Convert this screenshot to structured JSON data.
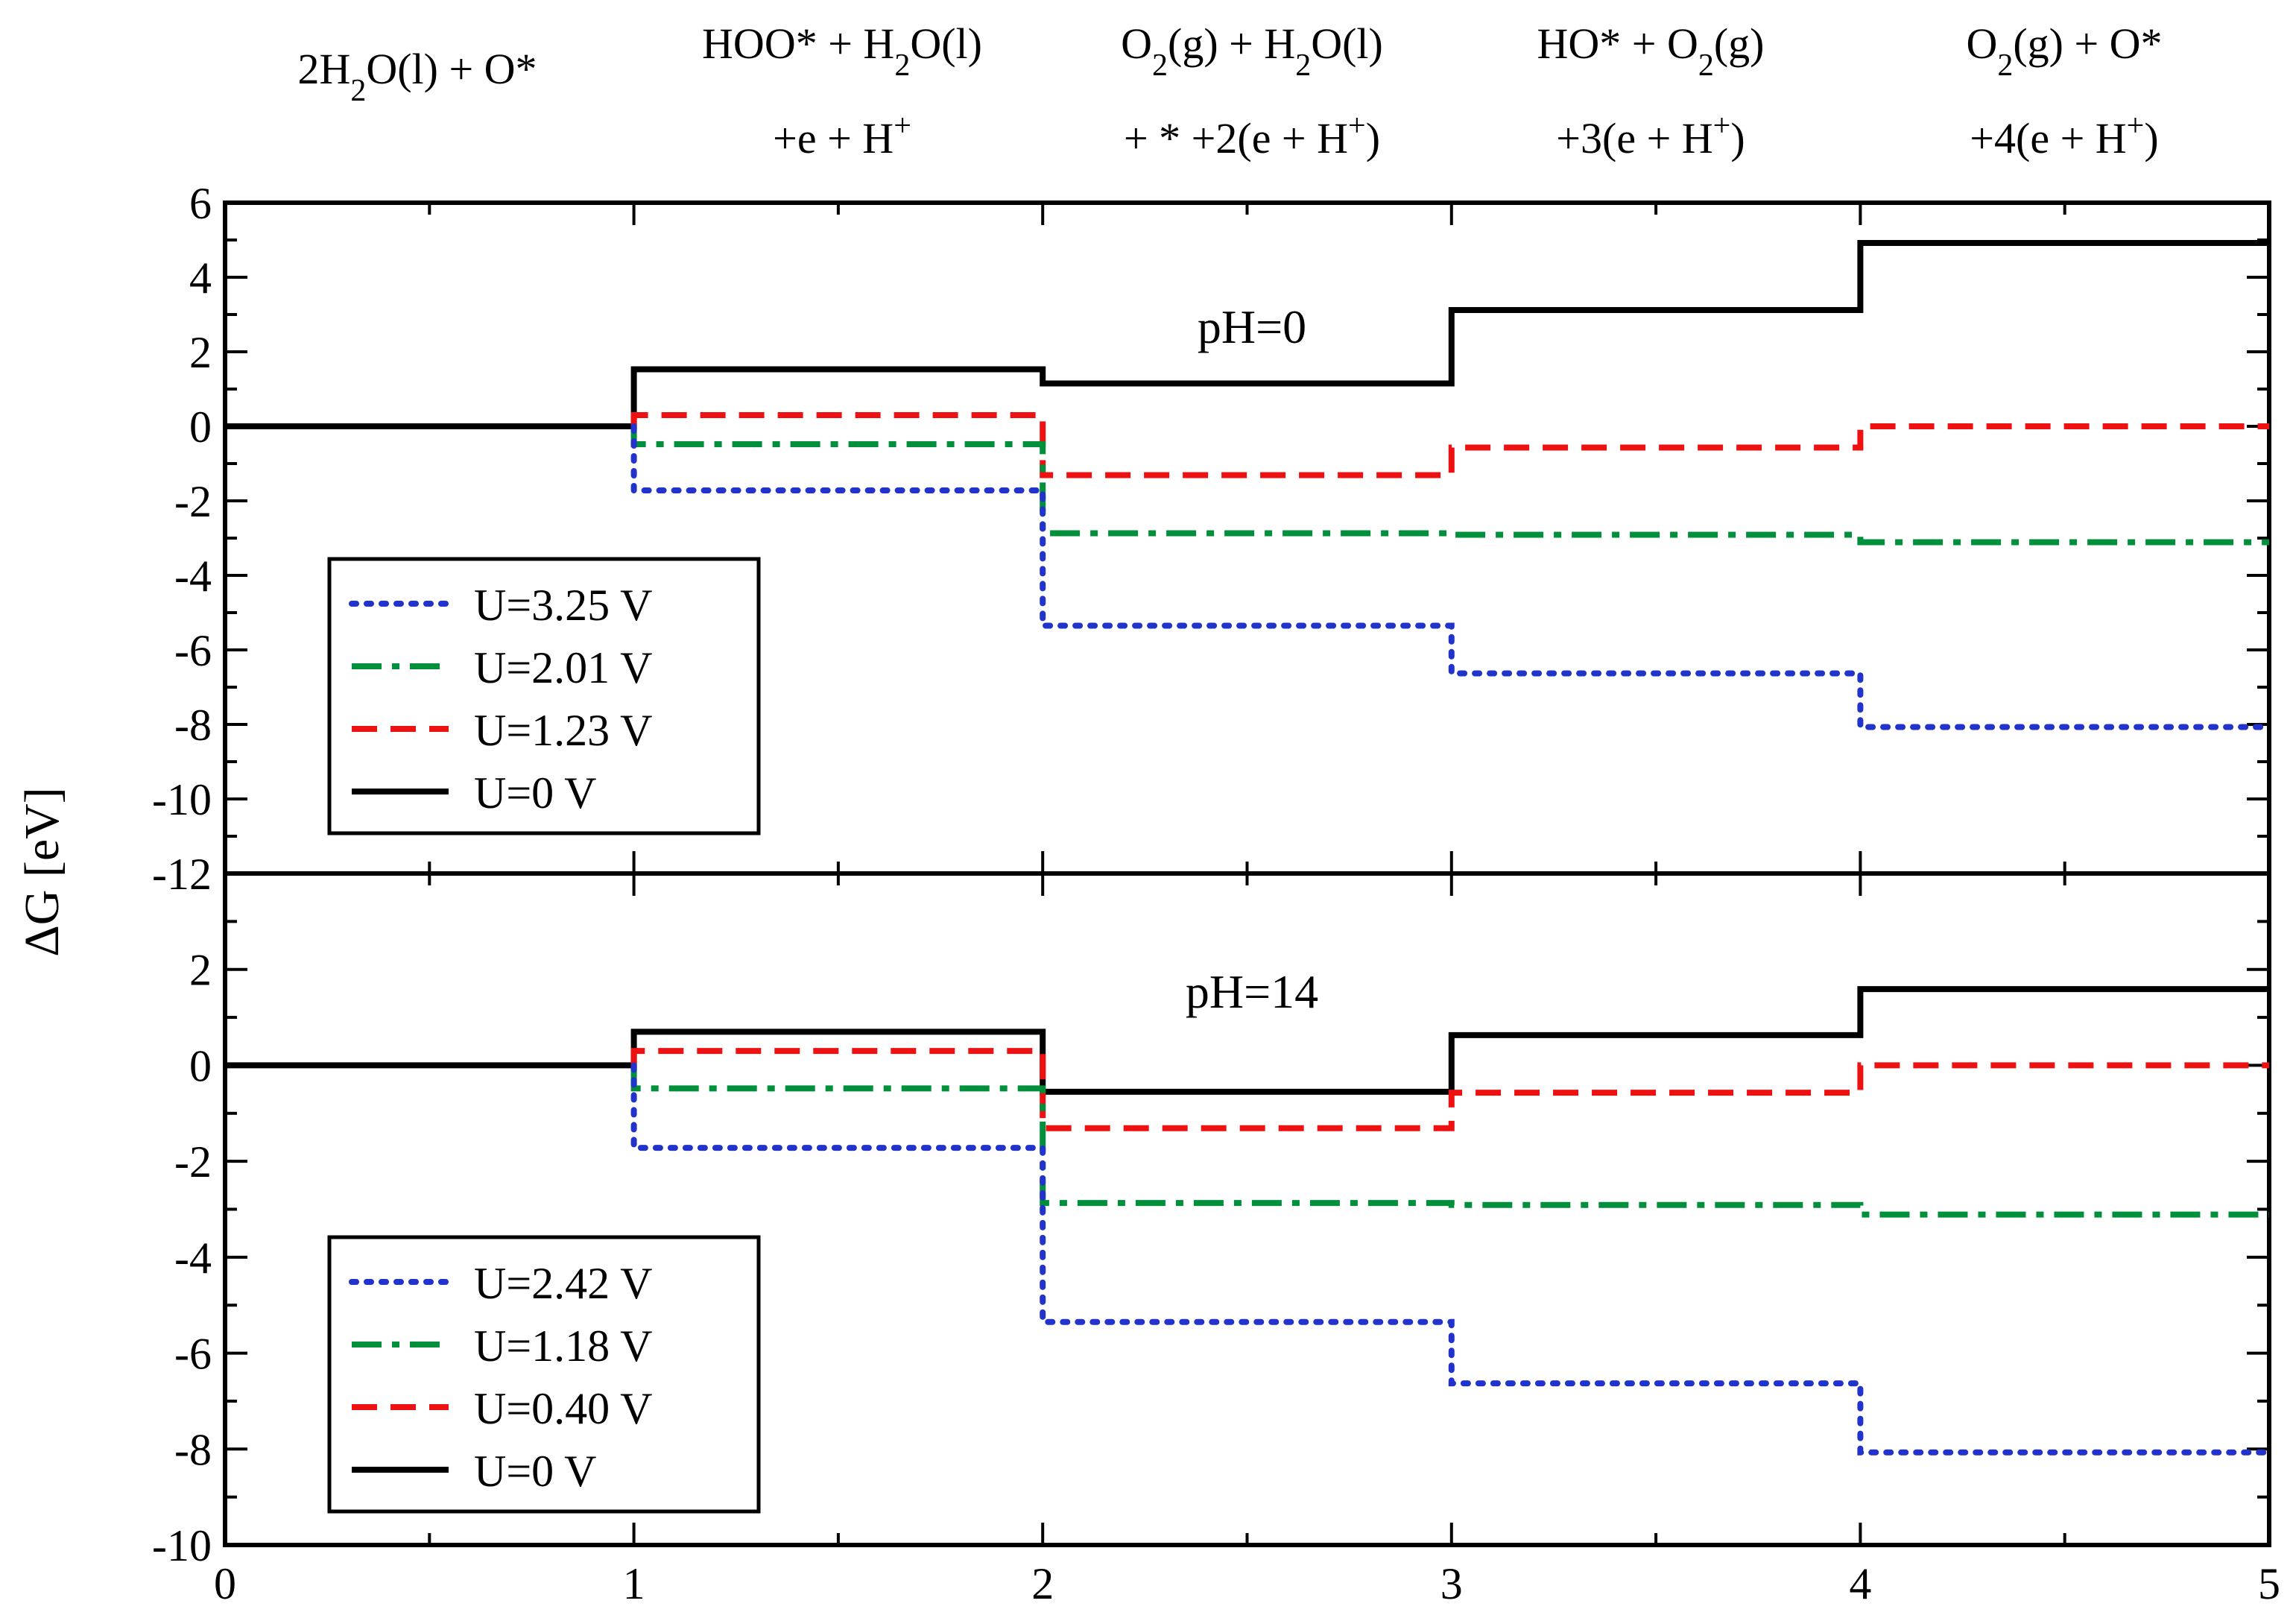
{
  "figure": {
    "ylabel": "ΔG [eV]",
    "xlim": [
      0,
      5
    ],
    "x_ticks": [
      "0",
      "1",
      "2",
      "3",
      "4",
      "5"
    ]
  },
  "reaction_labels": [
    {
      "line1": "2H",
      "line1_sub": "2",
      "line1_rest": "O(l) + O*",
      "line2": ""
    },
    {
      "line1": "HOO* + H",
      "line1_sub": "2",
      "line1_rest": "O(l)",
      "line2": "+e + H",
      "line2_sup": "+",
      "line2_rest": ""
    },
    {
      "line1": "O",
      "line1_sub": "2",
      "line1_rest": "(g) + H",
      "line1_sub2": "2",
      "line1_rest2": "O(l)",
      "line2": "+ * +2(e + H",
      "line2_sup": "+",
      "line2_rest": ")"
    },
    {
      "line1": "HO* + O",
      "line1_sub": "2",
      "line1_rest": "(g)",
      "line2": "+3(e + H",
      "line2_sup": "+",
      "line2_rest": ")"
    },
    {
      "line1": "O",
      "line1_sub": "2",
      "line1_rest": "(g)  + O*",
      "line2": "+4(e + H",
      "line2_sup": "+",
      "line2_rest": ")"
    }
  ],
  "chart_data": [
    {
      "type": "line",
      "step": true,
      "title": "pH=0",
      "xlabel": "",
      "ylabel": "ΔG [eV]",
      "xlim": [
        0,
        5
      ],
      "ylim": [
        -12,
        6
      ],
      "y_ticks": [
        "-12",
        "-10",
        "-8",
        "-6",
        "-4",
        "-2",
        "0",
        "2",
        "4",
        "6"
      ],
      "y_tick_values": [
        -12,
        -10,
        -8,
        -6,
        -4,
        -2,
        0,
        2,
        4,
        6
      ],
      "legend_position": "bottom-left",
      "series": [
        {
          "name": "U=3.25 V",
          "color": "#2233cc",
          "style": "dotted",
          "levels": [
            0,
            -1.72,
            -5.35,
            -6.63,
            -8.07
          ]
        },
        {
          "name": "U=2.01 V",
          "color": "#008f3a",
          "style": "dashdot",
          "levels": [
            0,
            -0.48,
            -2.87,
            -2.91,
            -3.11
          ]
        },
        {
          "name": "U=1.23 V",
          "color": "#ee1111",
          "style": "dashed",
          "levels": [
            0,
            0.3,
            -1.31,
            -0.57,
            0.0
          ]
        },
        {
          "name": "U=0 V",
          "color": "#000000",
          "style": "solid",
          "levels": [
            0,
            1.53,
            1.15,
            3.12,
            4.92
          ]
        }
      ]
    },
    {
      "type": "line",
      "step": true,
      "title": "pH=14",
      "xlabel": "",
      "ylabel": "ΔG [eV]",
      "xlim": [
        0,
        5
      ],
      "ylim": [
        -10,
        4
      ],
      "y_ticks": [
        "-10",
        "-8",
        "-6",
        "-4",
        "-2",
        "0",
        "2"
      ],
      "y_tick_values": [
        -10,
        -8,
        -6,
        -4,
        -2,
        0,
        2
      ],
      "legend_position": "bottom-left",
      "series": [
        {
          "name": "U=2.42 V",
          "color": "#2233cc",
          "style": "dotted",
          "levels": [
            0,
            -1.72,
            -5.35,
            -6.63,
            -8.07
          ]
        },
        {
          "name": "U=1.18 V",
          "color": "#008f3a",
          "style": "dashdot",
          "levels": [
            0,
            -0.48,
            -2.87,
            -2.91,
            -3.11
          ]
        },
        {
          "name": "U=0.40 V",
          "color": "#ee1111",
          "style": "dashed",
          "levels": [
            0,
            0.3,
            -1.31,
            -0.57,
            0.0
          ]
        },
        {
          "name": "U=0 V",
          "color": "#000000",
          "style": "solid",
          "levels": [
            0,
            0.7,
            -0.55,
            0.63,
            1.59
          ]
        }
      ]
    }
  ]
}
